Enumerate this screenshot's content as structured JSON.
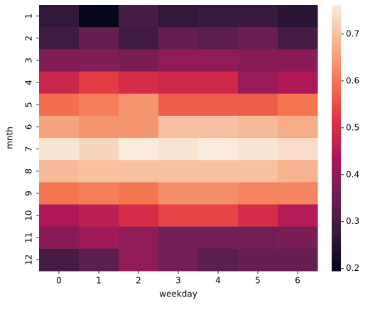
{
  "chart_data": {
    "type": "heatmap",
    "xlabel": "weekday",
    "ylabel": "mnth",
    "x": [
      "0",
      "1",
      "2",
      "3",
      "4",
      "5",
      "6"
    ],
    "y": [
      "1",
      "2",
      "3",
      "4",
      "5",
      "6",
      "7",
      "8",
      "9",
      "10",
      "11",
      "12"
    ],
    "values": [
      [
        0.27,
        0.2,
        0.3,
        0.27,
        0.28,
        0.28,
        0.26
      ],
      [
        0.29,
        0.34,
        0.29,
        0.34,
        0.33,
        0.35,
        0.3
      ],
      [
        0.38,
        0.38,
        0.37,
        0.4,
        0.4,
        0.39,
        0.39
      ],
      [
        0.48,
        0.53,
        0.5,
        0.49,
        0.49,
        0.41,
        0.44
      ],
      [
        0.59,
        0.61,
        0.64,
        0.57,
        0.57,
        0.57,
        0.6
      ],
      [
        0.66,
        0.64,
        0.64,
        0.7,
        0.7,
        0.69,
        0.67
      ],
      [
        0.75,
        0.73,
        0.76,
        0.75,
        0.76,
        0.75,
        0.74
      ],
      [
        0.69,
        0.7,
        0.7,
        0.7,
        0.7,
        0.7,
        0.68
      ],
      [
        0.6,
        0.61,
        0.6,
        0.63,
        0.63,
        0.62,
        0.62
      ],
      [
        0.44,
        0.46,
        0.5,
        0.54,
        0.54,
        0.5,
        0.45
      ],
      [
        0.39,
        0.42,
        0.4,
        0.36,
        0.36,
        0.36,
        0.37
      ],
      [
        0.3,
        0.33,
        0.4,
        0.36,
        0.33,
        0.34,
        0.34
      ]
    ],
    "zlim": [
      0.195,
      0.762
    ],
    "zticks": [
      0.2,
      0.3,
      0.4,
      0.5,
      0.6,
      0.7
    ],
    "colormap": [
      "#03051a",
      "#35193e",
      "#701f57",
      "#ad1759",
      "#e13342",
      "#f37651",
      "#f6b48f",
      "#faebdd"
    ]
  }
}
